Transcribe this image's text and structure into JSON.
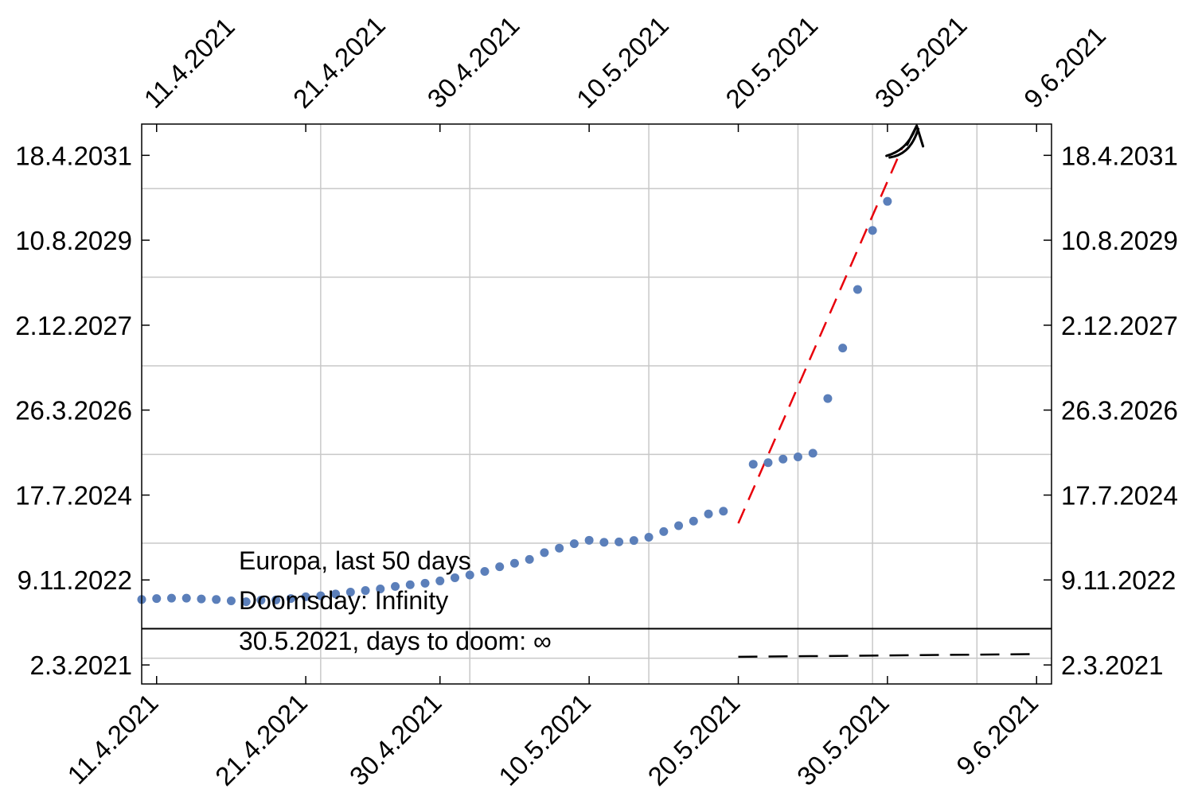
{
  "chart_data": {
    "type": "scatter",
    "x_axis": {
      "type": "date",
      "range": [
        "2021-04-10",
        "2021-06-10"
      ],
      "ticks": [
        {
          "date": "2021-04-11",
          "label": "11.4.2021"
        },
        {
          "date": "2021-04-21",
          "label": "21.4.2021"
        },
        {
          "date": "2021-04-30",
          "label": "30.4.2021"
        },
        {
          "date": "2021-05-10",
          "label": "10.5.2021"
        },
        {
          "date": "2021-05-20",
          "label": "20.5.2021"
        },
        {
          "date": "2021-05-30",
          "label": "30.5.2021"
        },
        {
          "date": "2021-06-09",
          "label": "9.6.2021"
        }
      ],
      "grid_dates": [
        "2021-04-22",
        "2021-05-02",
        "2021-05-14",
        "2021-05-24",
        "2021-05-29",
        "2021-06-05"
      ]
    },
    "y_axis": {
      "type": "date",
      "range": [
        "2020-10-15",
        "2031-12-01"
      ],
      "ticks": [
        {
          "date": "2021-03-02",
          "label": "2.3.2021"
        },
        {
          "date": "2022-11-09",
          "label": "9.11.2022"
        },
        {
          "date": "2024-07-17",
          "label": "17.7.2024"
        },
        {
          "date": "2026-03-26",
          "label": "26.3.2026"
        },
        {
          "date": "2027-12-02",
          "label": "2.12.2027"
        },
        {
          "date": "2029-08-10",
          "label": "10.8.2029"
        },
        {
          "date": "2031-04-18",
          "label": "18.4.2031"
        }
      ],
      "grid_dates": [
        "2021-04-20",
        "2023-08-03",
        "2025-05-08",
        "2027-02-10",
        "2028-11-15",
        "2030-08-20"
      ]
    },
    "grid": true,
    "series": [
      {
        "color": "#5b7fba",
        "points": [
          {
            "x": "2021-04-10",
            "y": "2022-06-20"
          },
          {
            "x": "2021-04-11",
            "y": "2022-06-27"
          },
          {
            "x": "2021-04-12",
            "y": "2022-06-30"
          },
          {
            "x": "2021-04-13",
            "y": "2022-06-30"
          },
          {
            "x": "2021-04-14",
            "y": "2022-06-24"
          },
          {
            "x": "2021-04-15",
            "y": "2022-06-20"
          },
          {
            "x": "2021-04-16",
            "y": "2022-06-10"
          },
          {
            "x": "2021-04-17",
            "y": "2022-06-04"
          },
          {
            "x": "2021-04-18",
            "y": "2022-06-15"
          },
          {
            "x": "2021-04-19",
            "y": "2022-06-17"
          },
          {
            "x": "2021-04-20",
            "y": "2022-06-27"
          },
          {
            "x": "2021-04-21",
            "y": "2022-07-10"
          },
          {
            "x": "2021-04-22",
            "y": "2022-07-17"
          },
          {
            "x": "2021-04-23",
            "y": "2022-07-30"
          },
          {
            "x": "2021-04-24",
            "y": "2022-08-13"
          },
          {
            "x": "2021-04-25",
            "y": "2022-08-24"
          },
          {
            "x": "2021-04-26",
            "y": "2022-09-05"
          },
          {
            "x": "2021-04-27",
            "y": "2022-09-23"
          },
          {
            "x": "2021-04-28",
            "y": "2022-10-05"
          },
          {
            "x": "2021-04-29",
            "y": "2022-10-16"
          },
          {
            "x": "2021-04-30",
            "y": "2022-11-02"
          },
          {
            "x": "2021-05-01",
            "y": "2022-11-25"
          },
          {
            "x": "2021-05-02",
            "y": "2022-12-15"
          },
          {
            "x": "2021-05-03",
            "y": "2023-01-10"
          },
          {
            "x": "2021-05-04",
            "y": "2023-02-13"
          },
          {
            "x": "2021-05-05",
            "y": "2023-03-10"
          },
          {
            "x": "2021-05-06",
            "y": "2023-04-07"
          },
          {
            "x": "2021-05-07",
            "y": "2023-05-26"
          },
          {
            "x": "2021-05-08",
            "y": "2023-06-28"
          },
          {
            "x": "2021-05-09",
            "y": "2023-07-30"
          },
          {
            "x": "2021-05-10",
            "y": "2023-08-24"
          },
          {
            "x": "2021-05-11",
            "y": "2023-08-09"
          },
          {
            "x": "2021-05-12",
            "y": "2023-08-12"
          },
          {
            "x": "2021-05-13",
            "y": "2023-08-22"
          },
          {
            "x": "2021-05-14",
            "y": "2023-09-15"
          },
          {
            "x": "2021-05-15",
            "y": "2023-10-26"
          },
          {
            "x": "2021-05-16",
            "y": "2023-12-08"
          },
          {
            "x": "2021-05-17",
            "y": "2024-01-10"
          },
          {
            "x": "2021-05-18",
            "y": "2024-03-02"
          },
          {
            "x": "2021-05-19",
            "y": "2024-03-22"
          },
          {
            "x": "2021-05-21",
            "y": "2025-02-26"
          },
          {
            "x": "2021-05-22",
            "y": "2025-03-09"
          },
          {
            "x": "2021-05-23",
            "y": "2025-04-04"
          },
          {
            "x": "2021-05-24",
            "y": "2025-04-20"
          },
          {
            "x": "2021-05-25",
            "y": "2025-05-17"
          },
          {
            "x": "2021-05-26",
            "y": "2026-06-18"
          },
          {
            "x": "2021-05-27",
            "y": "2027-06-19"
          },
          {
            "x": "2021-05-28",
            "y": "2028-08-17"
          },
          {
            "x": "2021-05-29",
            "y": "2029-10-20"
          },
          {
            "x": "2021-05-30",
            "y": "2030-05-19"
          }
        ]
      }
    ],
    "fit_line": {
      "color": "#e8000b",
      "style": "dashed",
      "from": {
        "x": "2021-05-20",
        "y": "2023-12-25"
      },
      "to": {
        "x": "2021-05-31",
        "y": "2031-06-15"
      }
    },
    "doom_line": {
      "color": "#000000",
      "style": "dashed",
      "from": {
        "x": "2021-05-20",
        "y": "2021-04-30"
      },
      "to": {
        "x": "2021-06-09",
        "y": "2021-05-20"
      }
    },
    "reference_line": {
      "y": "2021-11-20",
      "color": "#000000"
    },
    "annotations": [
      "Europa, last 50 days",
      "Doomsday: Infinity",
      "30.5.2021, days to doom: ∞"
    ]
  }
}
